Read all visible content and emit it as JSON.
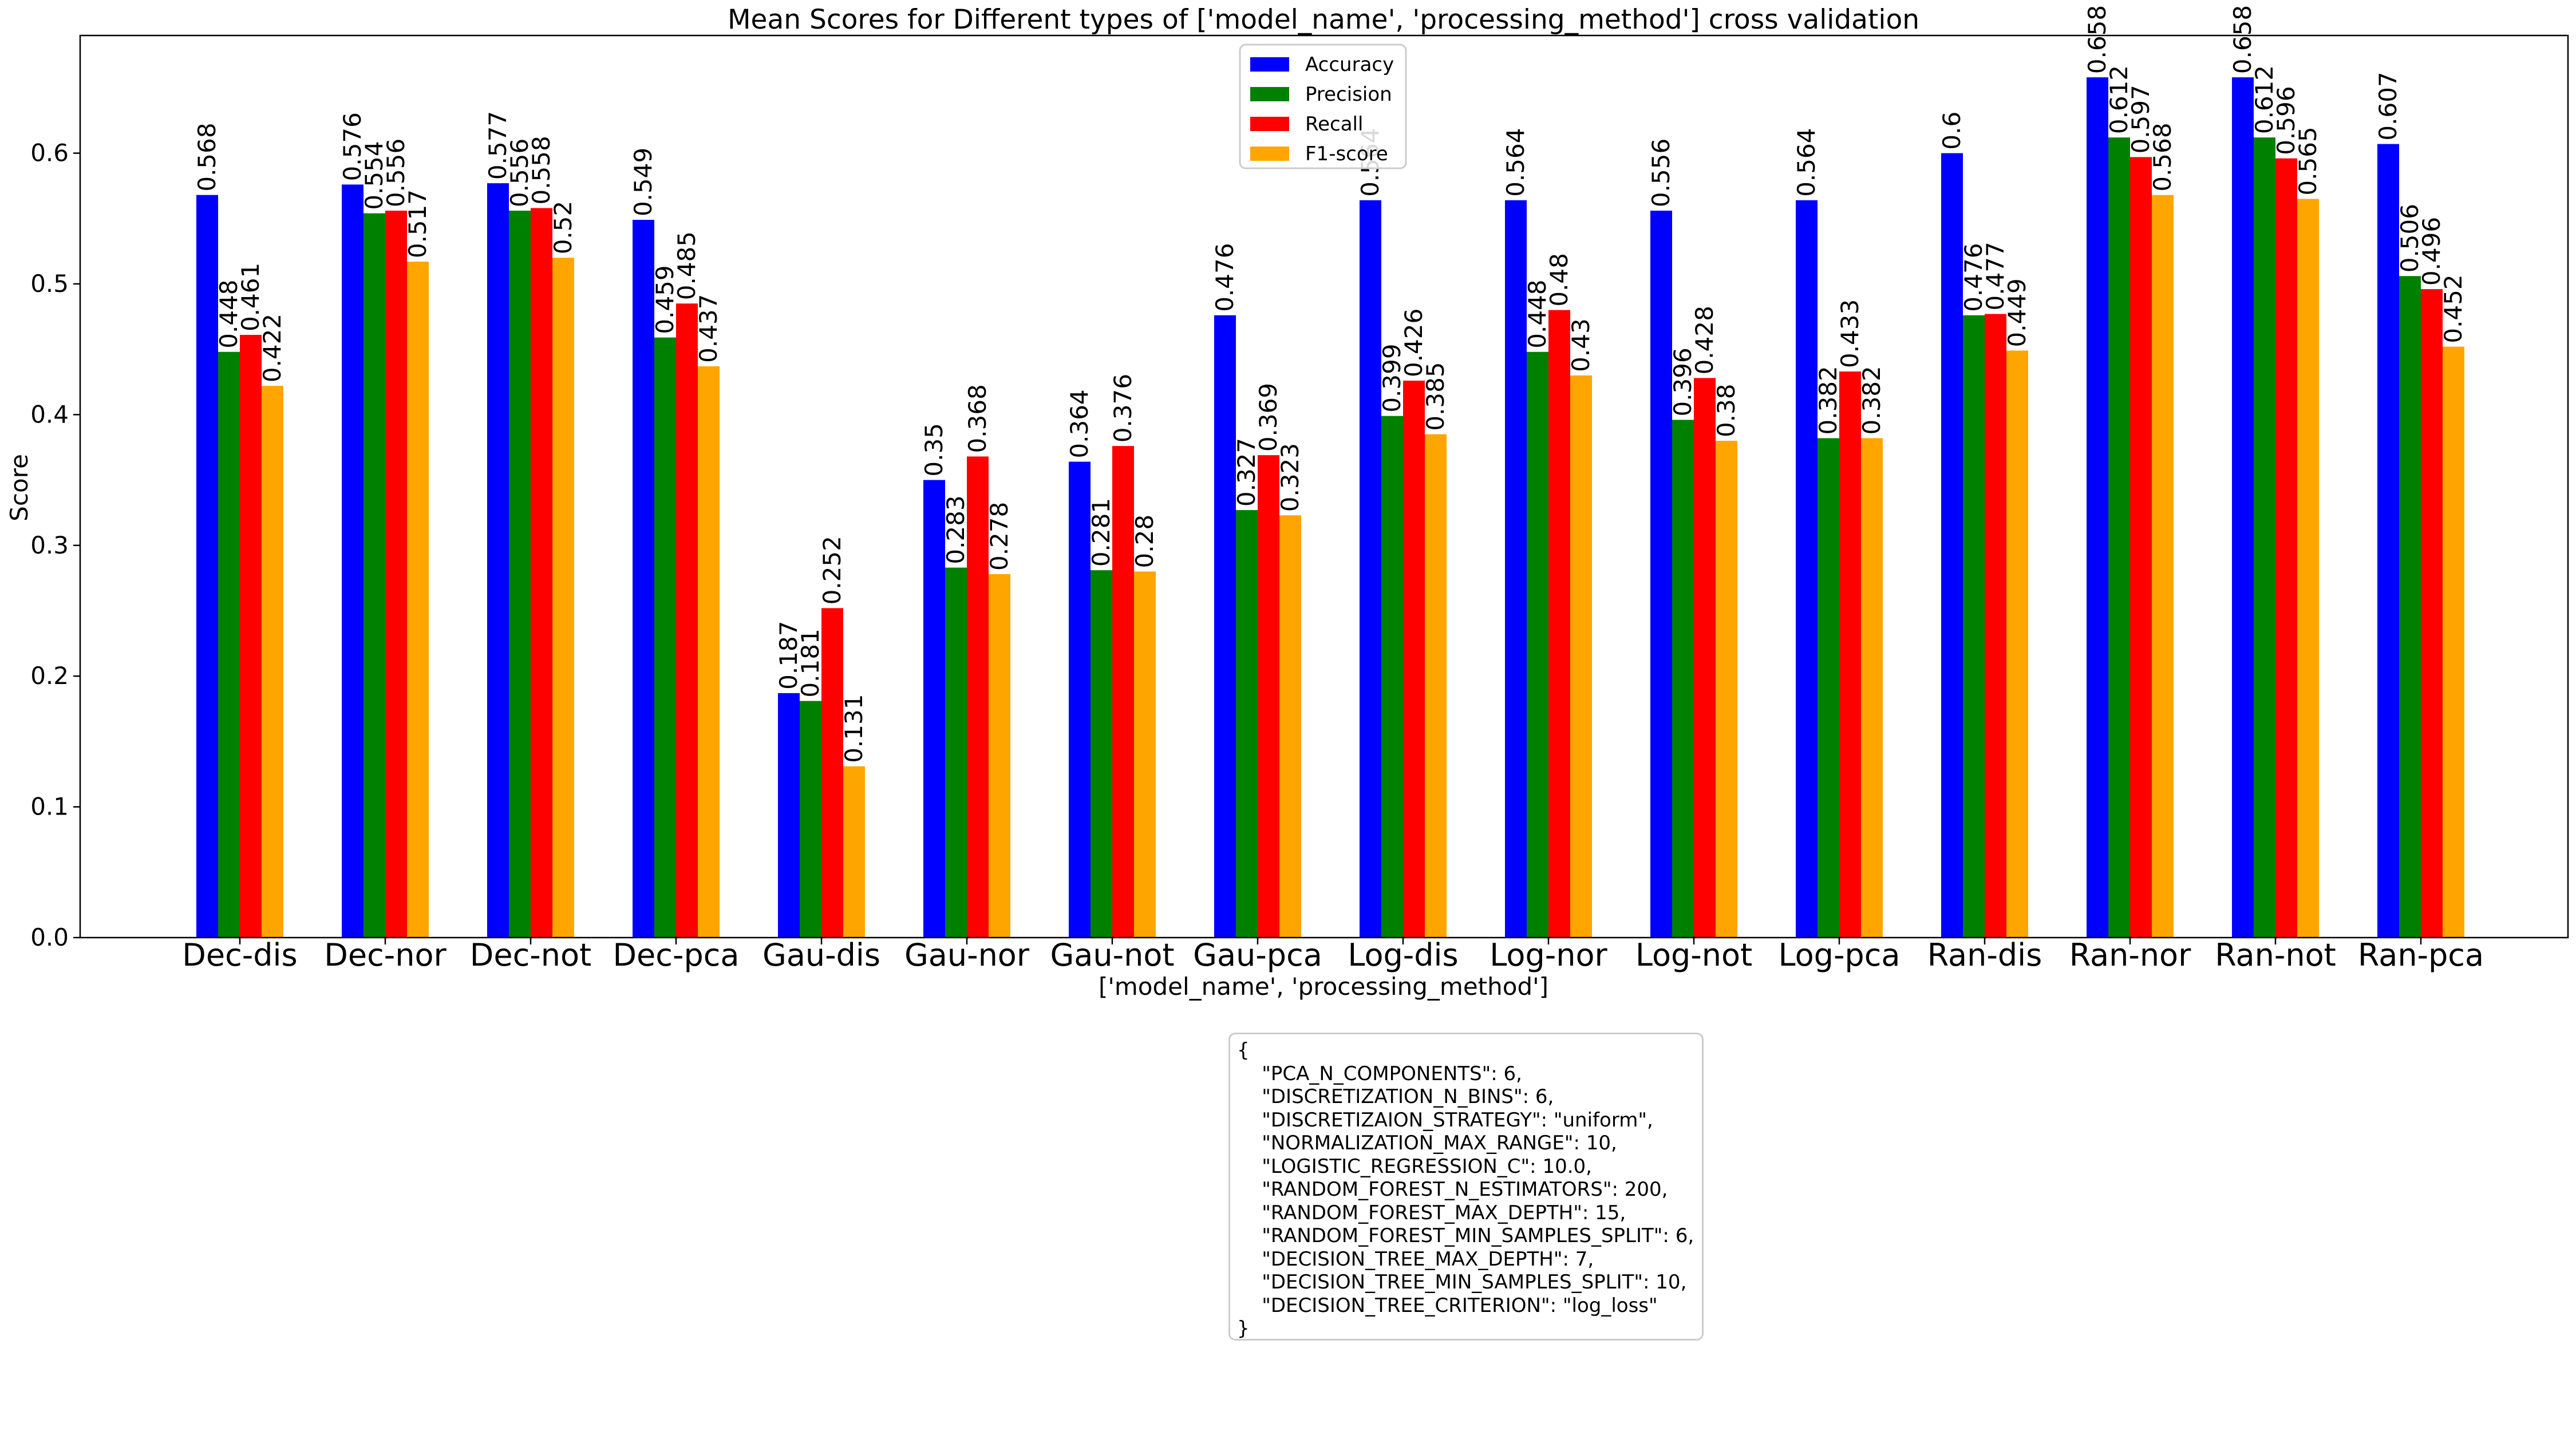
{
  "chart_data": {
    "type": "bar",
    "title": "Mean Scores for Different types of ['model_name', 'processing_method'] cross validation",
    "xlabel": "['model_name', 'processing_method']",
    "ylabel": "Score",
    "ylim": [
      0,
      0.69
    ],
    "yticks": [
      "0.0",
      "0.1",
      "0.2",
      "0.3",
      "0.4",
      "0.5",
      "0.6"
    ],
    "grid": false,
    "legend_position": "top-center",
    "categories": [
      "Dec-dis",
      "Dec-nor",
      "Dec-not",
      "Dec-pca",
      "Gau-dis",
      "Gau-nor",
      "Gau-not",
      "Gau-pca",
      "Log-dis",
      "Log-nor",
      "Log-not",
      "Log-pca",
      "Ran-dis",
      "Ran-nor",
      "Ran-not",
      "Ran-pca"
    ],
    "series": [
      {
        "name": "Accuracy",
        "color": "#0000ff",
        "values": [
          0.568,
          0.576,
          0.577,
          0.549,
          0.187,
          0.35,
          0.364,
          0.476,
          0.564,
          0.564,
          0.556,
          0.564,
          0.6,
          0.658,
          0.658,
          0.607
        ],
        "labels": [
          "0.568",
          "0.576",
          "0.577",
          "0.549",
          "0.187",
          "0.35",
          "0.364",
          "0.476",
          "0.564",
          "0.564",
          "0.556",
          "0.564",
          "0.6",
          "0.658",
          "0.658",
          "0.607"
        ]
      },
      {
        "name": "Precision",
        "color": "#008000",
        "values": [
          0.448,
          0.554,
          0.556,
          0.459,
          0.181,
          0.283,
          0.281,
          0.327,
          0.399,
          0.448,
          0.396,
          0.382,
          0.476,
          0.612,
          0.612,
          0.506
        ],
        "labels": [
          "0.448",
          "0.554",
          "0.556",
          "0.459",
          "0.181",
          "0.283",
          "0.281",
          "0.327",
          "0.399",
          "0.448",
          "0.396",
          "0.382",
          "0.476",
          "0.612",
          "0.612",
          "0.506"
        ]
      },
      {
        "name": "Recall",
        "color": "#ff0000",
        "values": [
          0.461,
          0.556,
          0.558,
          0.485,
          0.252,
          0.368,
          0.376,
          0.369,
          0.426,
          0.48,
          0.428,
          0.433,
          0.477,
          0.597,
          0.596,
          0.496
        ],
        "labels": [
          "0.461",
          "0.556",
          "0.558",
          "0.485",
          "0.252",
          "0.368",
          "0.376",
          "0.369",
          "0.426",
          "0.48",
          "0.428",
          "0.433",
          "0.477",
          "0.597",
          "0.596",
          "0.496"
        ]
      },
      {
        "name": "F1-score",
        "color": "#ffa500",
        "values": [
          0.422,
          0.517,
          0.52,
          0.437,
          0.131,
          0.278,
          0.28,
          0.323,
          0.385,
          0.43,
          0.38,
          0.382,
          0.449,
          0.568,
          0.565,
          0.452
        ],
        "labels": [
          "0.422",
          "0.517",
          "0.52",
          "0.437",
          "0.131",
          "0.278",
          "0.28",
          "0.323",
          "0.385",
          "0.43",
          "0.38",
          "0.382",
          "0.449",
          "0.568",
          "0.565",
          "0.452"
        ]
      }
    ]
  },
  "config_box": {
    "lines": [
      "{",
      "    \"PCA_N_COMPONENTS\": 6,",
      "    \"DISCRETIZATION_N_BINS\": 6,",
      "    \"DISCRETIZAION_STRATEGY\": \"uniform\",",
      "    \"NORMALIZATION_MAX_RANGE\": 10,",
      "    \"LOGISTIC_REGRESSION_C\": 10.0,",
      "    \"RANDOM_FOREST_N_ESTIMATORS\": 200,",
      "    \"RANDOM_FOREST_MAX_DEPTH\": 15,",
      "    \"RANDOM_FOREST_MIN_SAMPLES_SPLIT\": 6,",
      "    \"DECISION_TREE_MAX_DEPTH\": 7,",
      "    \"DECISION_TREE_MIN_SAMPLES_SPLIT\": 10,",
      "    \"DECISION_TREE_CRITERION\": \"log_loss\"",
      "}"
    ]
  }
}
